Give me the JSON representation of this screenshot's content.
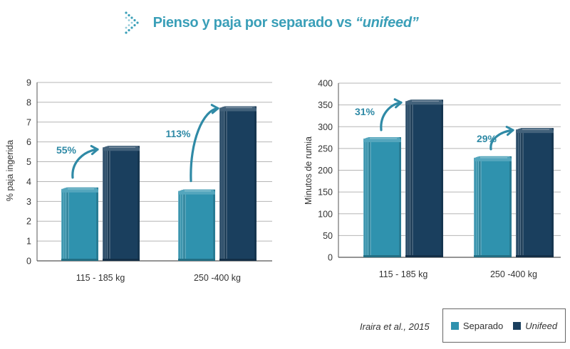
{
  "title": {
    "prefix": "Pienso y paja por separado vs ",
    "open_quote": "“",
    "emph": "unifeed",
    "close_quote": "”"
  },
  "colors": {
    "title": "#3a9fb8",
    "separado": "#2f92ae",
    "unifeed": "#1a3f5e",
    "arrow": "#2f8aa6",
    "grid": "#b5b5b5"
  },
  "chart_data": [
    {
      "type": "bar",
      "categories": [
        "115 - 185 kg",
        "250 -400 kg"
      ],
      "series": [
        {
          "name": "Separado",
          "values": [
            3.7,
            3.6
          ]
        },
        {
          "name": "Unifeed",
          "values": [
            5.8,
            7.8
          ]
        }
      ],
      "ylabel": "% paja ingerida",
      "ylim": [
        0,
        9
      ],
      "yticks": [
        "0",
        "1",
        "2",
        "3",
        "4",
        "5",
        "6",
        "7",
        "8",
        "9"
      ],
      "annotations": [
        "55%",
        "113%"
      ],
      "grid": true
    },
    {
      "type": "bar",
      "categories": [
        "115 - 185 kg",
        "250 -400 kg"
      ],
      "series": [
        {
          "name": "Separado",
          "values": [
            276,
            232
          ]
        },
        {
          "name": "Unifeed",
          "values": [
            362,
            297
          ]
        }
      ],
      "ylabel": "Minutos de rumia",
      "ylim": [
        0,
        400
      ],
      "yticks": [
        "0",
        "50",
        "100",
        "150",
        "200",
        "250",
        "300",
        "350",
        "400"
      ],
      "annotations": [
        "31%",
        "29%"
      ],
      "grid": true
    }
  ],
  "citation": "Iraira et al., 2015",
  "legend": {
    "separado": "Separado",
    "unifeed": "Unifeed"
  }
}
